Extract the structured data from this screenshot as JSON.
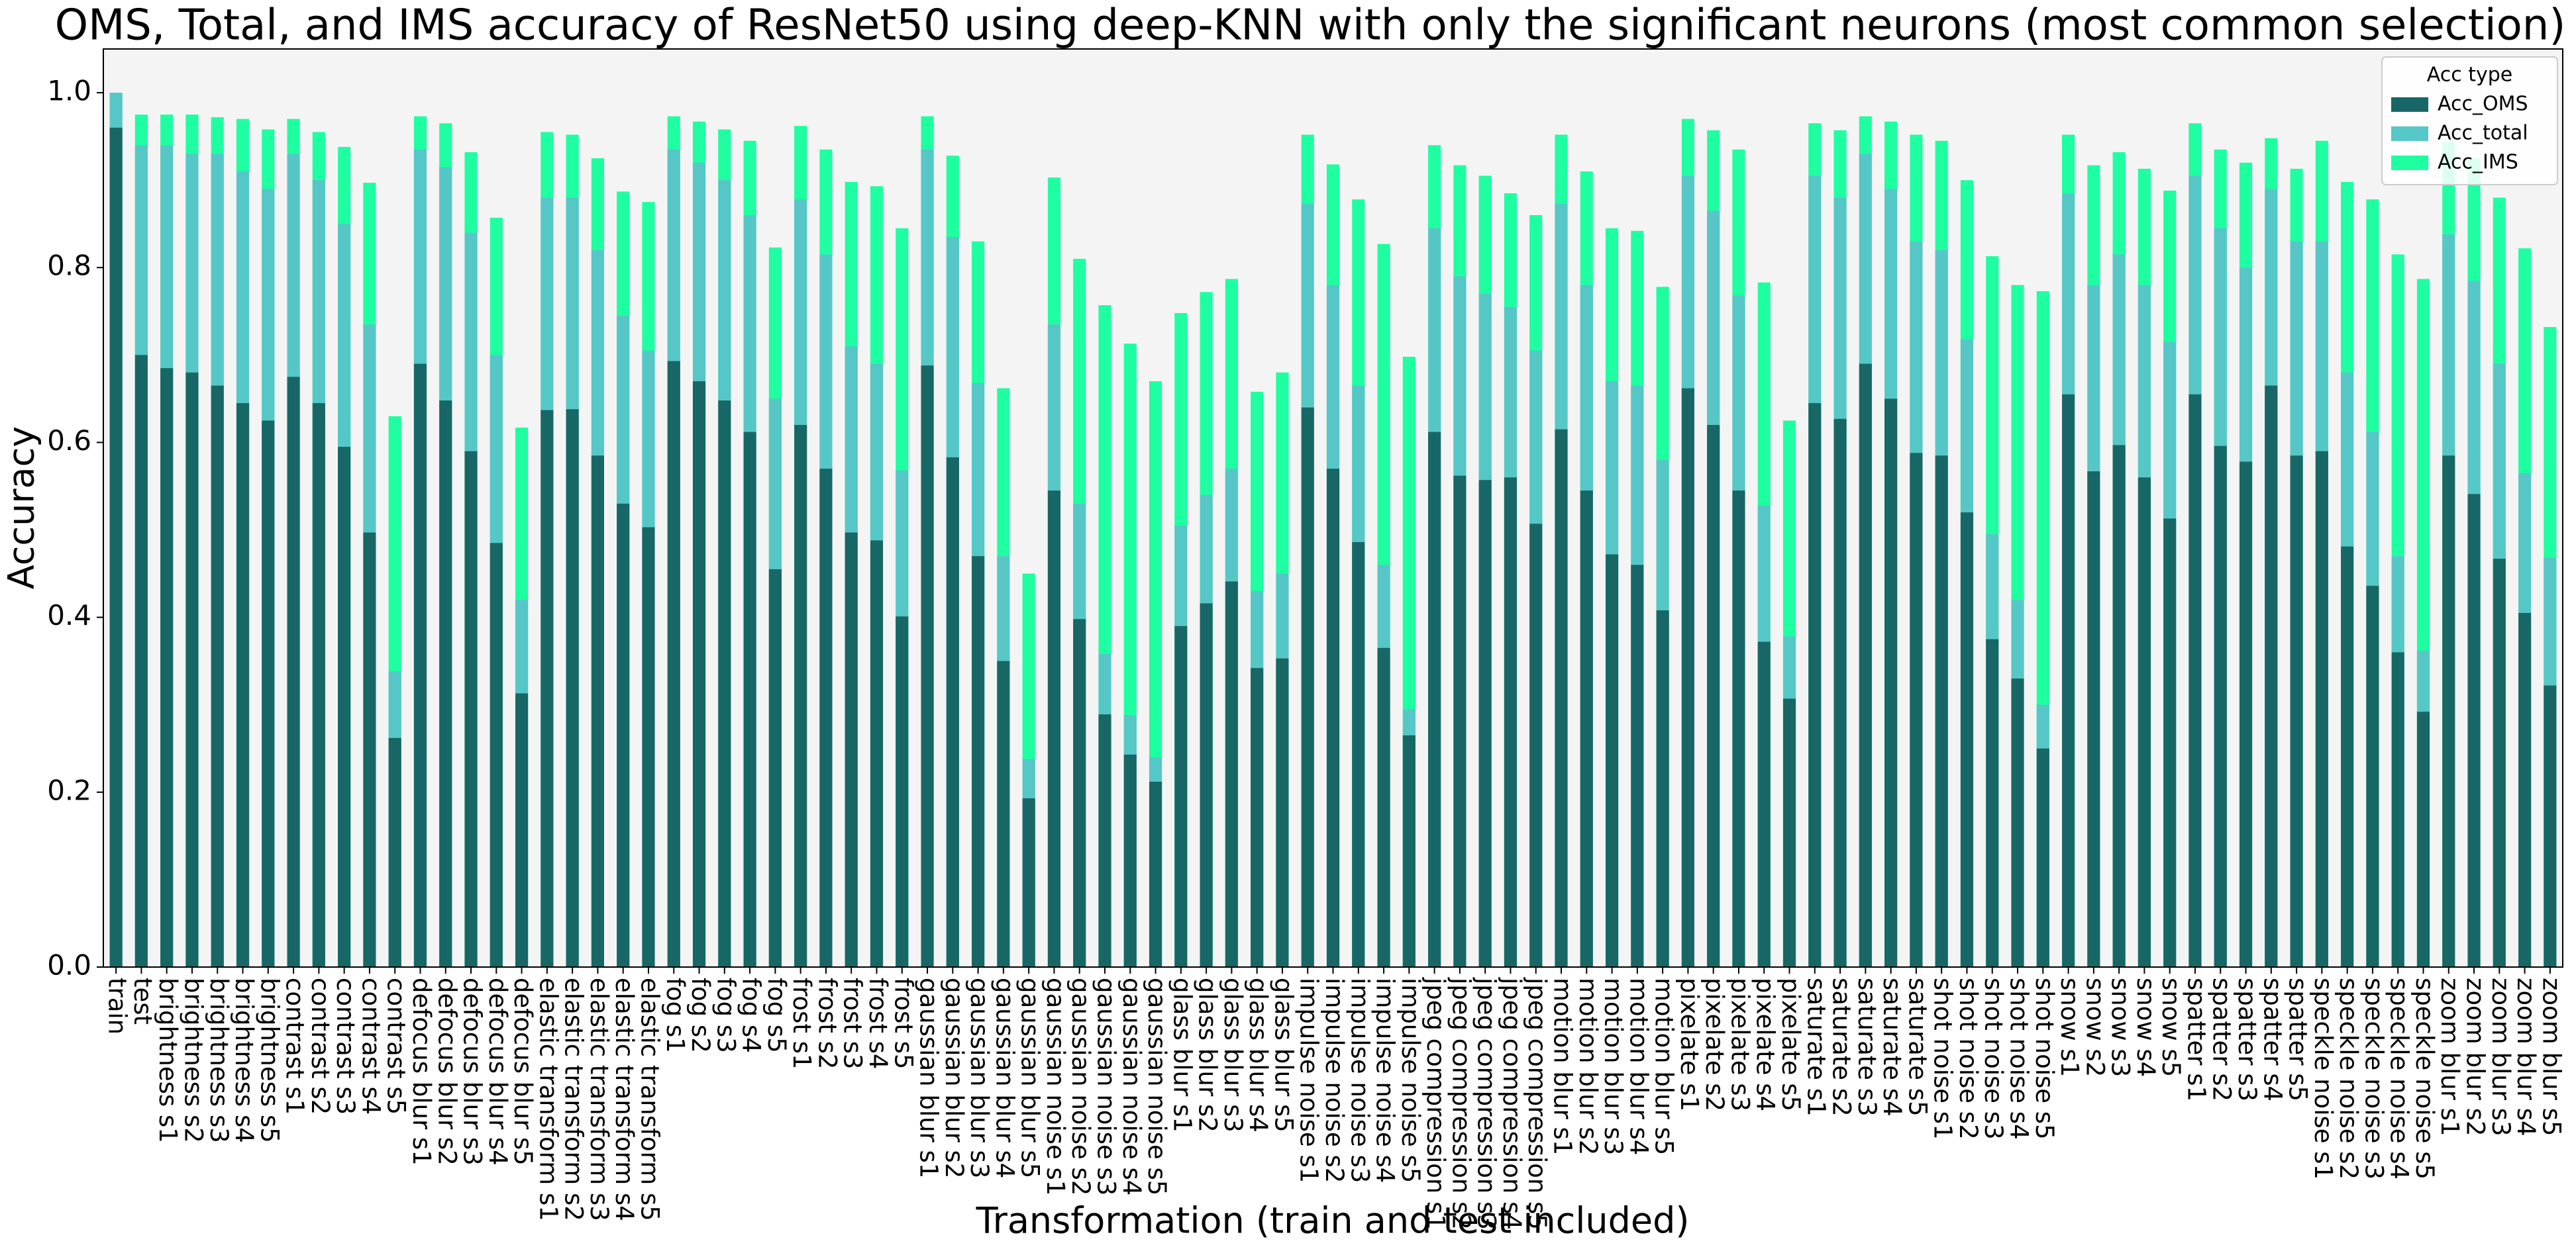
{
  "chart_data": {
    "type": "bar",
    "title": "OMS, Total,  and IMS accuracy of ResNet50 using deep-KNN with only the significant neurons (most common selection)",
    "x_label": "Transformation (train and test included)",
    "y_label": "Accuracy",
    "categories": [
      "train",
      "test",
      "brightness s1",
      "brightness s2",
      "brightness s3",
      "brightness s4",
      "brightness s5",
      "contrast s1",
      "contrast s2",
      "contrast s3",
      "contrast s4",
      "contrast s5",
      "defocus blur s1",
      "defocus blur s2",
      "defocus blur s3",
      "defocus blur s4",
      "defocus blur s5",
      "elastic transform s1",
      "elastic transform s2",
      "elastic transform s3",
      "elastic transform s4",
      "elastic transform s5",
      "fog s1",
      "fog s2",
      "fog s3",
      "fog s4",
      "fog s5",
      "frost s1",
      "frost s2",
      "frost s3",
      "frost s4",
      "frost s5",
      "gaussian blur s1",
      "gaussian blur s2",
      "gaussian blur s3",
      "gaussian blur s4",
      "gaussian blur s5",
      "gaussian noise s1",
      "gaussian noise s2",
      "gaussian noise s3",
      "gaussian noise s4",
      "gaussian noise s5",
      "glass blur s1",
      "glass blur s2",
      "glass blur s3",
      "glass blur s4",
      "glass blur s5",
      "impulse noise s1",
      "impulse noise s2",
      "impulse noise s3",
      "impulse noise s4",
      "impulse noise s5",
      "jpeg compression s1",
      "jpeg compression s2",
      "jpeg compression s3",
      "jpeg compression s4",
      "jpeg compression s5",
      "motion blur s1",
      "motion blur s2",
      "motion blur s3",
      "motion blur s4",
      "motion blur s5",
      "pixelate s1",
      "pixelate s2",
      "pixelate s3",
      "pixelate s4",
      "pixelate s5",
      "saturate s1",
      "saturate s2",
      "saturate s3",
      "saturate s4",
      "saturate s5",
      "shot noise s1",
      "shot noise s2",
      "shot noise s3",
      "shot noise s4",
      "shot noise s5",
      "snow s1",
      "snow s2",
      "snow s3",
      "snow s4",
      "snow s5",
      "spatter s1",
      "spatter s2",
      "spatter s3",
      "spatter s4",
      "spatter s5",
      "speckle noise s1",
      "speckle noise s2",
      "speckle noise s3",
      "speckle noise s4",
      "speckle noise s5",
      "zoom blur s1",
      "zoom blur s2",
      "zoom blur s3",
      "zoom blur s4",
      "zoom blur s5"
    ],
    "series": [
      {
        "name": "Acc_IMS",
        "color": "#1effa2",
        "values": [
          1.0,
          0.975,
          0.975,
          0.975,
          0.972,
          0.97,
          0.958,
          0.97,
          0.955,
          0.938,
          0.897,
          0.63,
          0.973,
          0.965,
          0.932,
          0.857,
          0.617,
          0.955,
          0.952,
          0.925,
          0.887,
          0.875,
          0.973,
          0.967,
          0.958,
          0.945,
          0.823,
          0.962,
          0.935,
          0.898,
          0.893,
          0.845,
          0.973,
          0.928,
          0.83,
          0.662,
          0.45,
          0.903,
          0.81,
          0.757,
          0.713,
          0.67,
          0.748,
          0.772,
          0.787,
          0.658,
          0.68,
          0.952,
          0.918,
          0.878,
          0.827,
          0.698,
          0.94,
          0.917,
          0.905,
          0.885,
          0.86,
          0.952,
          0.91,
          0.845,
          0.842,
          0.778,
          0.97,
          0.957,
          0.935,
          0.783,
          0.625,
          0.965,
          0.957,
          0.973,
          0.967,
          0.952,
          0.945,
          0.9,
          0.813,
          0.78,
          0.773,
          0.952,
          0.917,
          0.932,
          0.913,
          0.888,
          0.965,
          0.935,
          0.92,
          0.948,
          0.913,
          0.945,
          0.898,
          0.878,
          0.815,
          0.787,
          0.943,
          0.925,
          0.88,
          0.822,
          0.732
        ]
      },
      {
        "name": "Acc_total",
        "color": "#56c7c7",
        "values": [
          1.0,
          0.94,
          0.94,
          0.93,
          0.93,
          0.91,
          0.89,
          0.93,
          0.9,
          0.85,
          0.735,
          0.338,
          0.935,
          0.915,
          0.84,
          0.7,
          0.42,
          0.88,
          0.88,
          0.82,
          0.745,
          0.705,
          0.935,
          0.92,
          0.9,
          0.86,
          0.65,
          0.878,
          0.815,
          0.71,
          0.69,
          0.568,
          0.935,
          0.835,
          0.668,
          0.47,
          0.238,
          0.735,
          0.53,
          0.358,
          0.288,
          0.24,
          0.505,
          0.54,
          0.57,
          0.43,
          0.45,
          0.873,
          0.78,
          0.665,
          0.46,
          0.295,
          0.845,
          0.79,
          0.77,
          0.755,
          0.705,
          0.873,
          0.78,
          0.67,
          0.665,
          0.58,
          0.905,
          0.865,
          0.768,
          0.528,
          0.378,
          0.905,
          0.88,
          0.93,
          0.89,
          0.83,
          0.82,
          0.718,
          0.495,
          0.42,
          0.3,
          0.885,
          0.78,
          0.815,
          0.78,
          0.715,
          0.905,
          0.845,
          0.8,
          0.89,
          0.83,
          0.83,
          0.68,
          0.612,
          0.47,
          0.362,
          0.838,
          0.785,
          0.69,
          0.565,
          0.468
        ]
      },
      {
        "name": "Acc_OMS",
        "color": "#186767",
        "values": [
          0.96,
          0.7,
          0.685,
          0.68,
          0.665,
          0.645,
          0.625,
          0.675,
          0.645,
          0.595,
          0.497,
          0.262,
          0.69,
          0.648,
          0.59,
          0.485,
          0.313,
          0.637,
          0.638,
          0.585,
          0.53,
          0.503,
          0.693,
          0.67,
          0.648,
          0.612,
          0.455,
          0.62,
          0.57,
          0.497,
          0.488,
          0.401,
          0.688,
          0.583,
          0.47,
          0.35,
          0.193,
          0.545,
          0.398,
          0.289,
          0.243,
          0.212,
          0.39,
          0.416,
          0.441,
          0.342,
          0.353,
          0.64,
          0.57,
          0.486,
          0.365,
          0.265,
          0.612,
          0.562,
          0.557,
          0.56,
          0.507,
          0.615,
          0.545,
          0.472,
          0.46,
          0.408,
          0.662,
          0.62,
          0.545,
          0.372,
          0.307,
          0.645,
          0.627,
          0.69,
          0.65,
          0.588,
          0.585,
          0.52,
          0.375,
          0.33,
          0.25,
          0.655,
          0.567,
          0.597,
          0.56,
          0.513,
          0.655,
          0.596,
          0.578,
          0.665,
          0.585,
          0.59,
          0.481,
          0.436,
          0.36,
          0.292,
          0.585,
          0.541,
          0.467,
          0.405,
          0.322
        ]
      }
    ],
    "legend_title": "Acc type",
    "legend_order": [
      "Acc_OMS",
      "Acc_total",
      "Acc_IMS"
    ],
    "legend": "upper right",
    "ylim": [
      0,
      1.05
    ],
    "yticks": [
      {
        "value": 0,
        "label": "0.0"
      },
      0.2,
      0.4,
      0.6,
      0.8,
      {
        "value": 1,
        "label": "1.0"
      }
    ],
    "plot_background": "#f4f4f4"
  }
}
